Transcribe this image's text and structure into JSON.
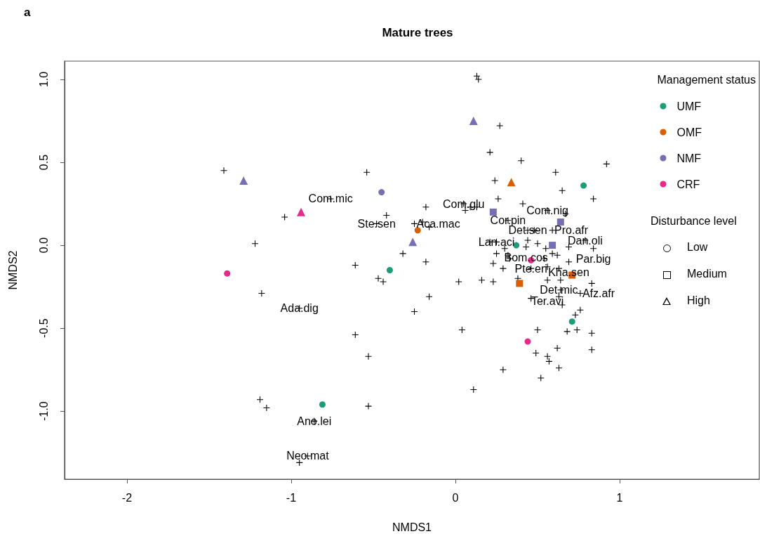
{
  "chart_data": {
    "type": "scatter",
    "title": "Mature trees",
    "xlabel": "NMDS1",
    "ylabel": "NMDS2",
    "legend_title": "Management status",
    "legend": "top right",
    "grid": false,
    "xlim": [
      -2.38,
      1.85
    ],
    "ylim": [
      -1.41,
      1.11
    ],
    "xticks": [
      -2,
      -1,
      0,
      1
    ],
    "yticks": [
      {
        "value": -1,
        "label": "-1.0"
      },
      {
        "value": -0.5,
        "label": "-0.5"
      },
      {
        "value": 0,
        "label": "0.0"
      },
      {
        "value": 0.5,
        "label": "0.5"
      },
      {
        "value": 1,
        "label": "1.0"
      }
    ],
    "series": [
      {
        "marker": "cross",
        "color": "#000000",
        "x": [
          -1.41,
          -1.04,
          -1.22,
          -1.18,
          -0.95,
          -1.19,
          -1.15,
          -0.86,
          -0.9,
          -0.95,
          -0.76,
          0.13,
          0.14,
          0.27,
          0.21,
          -0.54,
          0.24,
          0.26,
          -0.18,
          0.05,
          0.06,
          0.09,
          0.13,
          -0.42,
          -0.48,
          -0.25,
          -0.2,
          -0.16,
          0.32,
          0.21,
          -0.32,
          -0.18,
          -0.61,
          0.25,
          0.32,
          0.33,
          0.23,
          0.29,
          -0.47,
          -0.44,
          0.02,
          0.16,
          0.23,
          -0.16,
          -0.25,
          -0.61,
          0.04,
          -0.53,
          0.29,
          0.11,
          -0.53,
          0.4,
          0.92,
          0.61,
          0.65,
          0.84,
          0.41,
          0.56,
          0.67,
          0.44,
          0.48,
          0.59,
          0.25,
          0.44,
          0.5,
          0.79,
          0.69,
          0.84,
          0.3,
          0.43,
          0.55,
          0.59,
          0.62,
          0.54,
          0.69,
          0.46,
          0.56,
          0.63,
          0.38,
          0.56,
          0.64,
          0.83,
          0.64,
          0.63,
          0.76,
          0.46,
          0.65,
          0.76,
          0.73,
          0.5,
          0.68,
          0.74,
          0.83,
          0.83,
          0.62,
          0.49,
          0.56,
          0.57,
          0.63,
          0.52
        ],
        "values": [
          0.45,
          0.17,
          0.01,
          -0.29,
          -0.38,
          -0.93,
          -0.98,
          -1.06,
          -1.27,
          -1.31,
          0.28,
          1.02,
          1.0,
          0.72,
          0.56,
          0.44,
          0.39,
          0.28,
          0.23,
          0.25,
          0.21,
          0.23,
          0.23,
          0.18,
          0.13,
          0.13,
          0.14,
          0.11,
          0.15,
          0.02,
          -0.05,
          -0.1,
          -0.12,
          -0.05,
          -0.06,
          -0.08,
          -0.11,
          -0.14,
          -0.2,
          -0.22,
          -0.22,
          -0.21,
          -0.22,
          -0.31,
          -0.4,
          -0.54,
          -0.51,
          -0.67,
          -0.75,
          -0.87,
          -0.97,
          0.51,
          0.49,
          0.44,
          0.33,
          0.28,
          0.25,
          0.21,
          0.19,
          0.09,
          0.09,
          0.09,
          0.02,
          0.03,
          0.01,
          0.03,
          -0.01,
          -0.02,
          -0.02,
          -0.01,
          -0.02,
          -0.05,
          -0.06,
          -0.08,
          -0.1,
          -0.14,
          -0.13,
          -0.14,
          -0.2,
          -0.21,
          -0.21,
          -0.23,
          -0.27,
          -0.31,
          -0.29,
          -0.32,
          -0.36,
          -0.39,
          -0.42,
          -0.51,
          -0.52,
          -0.51,
          -0.53,
          -0.63,
          -0.62,
          -0.65,
          -0.67,
          -0.7,
          -0.74,
          -0.8
        ]
      },
      {
        "name": "UMF",
        "marker": "circle",
        "color": "#1b9e77",
        "x": [
          0.78,
          -0.4,
          0.71,
          -0.81,
          0.37
        ],
        "values": [
          0.36,
          -0.15,
          -0.46,
          -0.96,
          0.0
        ]
      },
      {
        "name": "OMF",
        "marker": "circle",
        "color": "#d95f02",
        "x": [
          -0.23
        ],
        "values": [
          0.09
        ]
      },
      {
        "marker": "square",
        "color": "#d95f02",
        "x": [
          0.39,
          0.71
        ],
        "values": [
          -0.23,
          -0.18
        ]
      },
      {
        "marker": "triangle",
        "color": "#d95f02",
        "x": [
          0.34
        ],
        "values": [
          0.38
        ]
      },
      {
        "name": "NMF",
        "marker": "circle",
        "color": "#7570b3",
        "x": [
          -0.45
        ],
        "values": [
          0.32
        ]
      },
      {
        "marker": "square",
        "color": "#7570b3",
        "x": [
          0.23,
          0.64,
          0.59
        ],
        "values": [
          0.2,
          0.14,
          0.0
        ]
      },
      {
        "marker": "triangle",
        "color": "#7570b3",
        "x": [
          -1.29,
          0.11,
          -0.26
        ],
        "values": [
          0.39,
          0.75,
          0.02
        ]
      },
      {
        "name": "CRF",
        "marker": "circle",
        "color": "#e7298a",
        "x": [
          -1.39,
          0.46,
          0.44
        ],
        "values": [
          -0.17,
          -0.09,
          -0.58
        ]
      },
      {
        "marker": "triangle",
        "color": "#e7298a",
        "x": [
          -0.94
        ],
        "values": [
          0.2
        ]
      }
    ],
    "annotations": [
      "a",
      "Disturbance level",
      "Low",
      "Medium",
      "High",
      {
        "text": "Com.mic",
        "x": -0.76,
        "y": 0.28
      },
      {
        "text": "Com.glu",
        "x": 0.05,
        "y": 0.25
      },
      {
        "text": "Ste.sen",
        "x": -0.48,
        "y": 0.13
      },
      {
        "text": "Aca.mac",
        "x": -0.25,
        "y": 0.13
      },
      {
        "text": "Cor.pin",
        "x": 0.32,
        "y": 0.15
      },
      {
        "text": "Com.nig",
        "x": 0.56,
        "y": 0.21
      },
      {
        "text": "Det.sen",
        "x": 0.44,
        "y": 0.09
      },
      {
        "text": "Pro.afr",
        "x": 0.59,
        "y": 0.09
      },
      {
        "text": "Lan.aci",
        "x": 0.25,
        "y": 0.02
      },
      {
        "text": "Dan.oli",
        "x": 0.79,
        "y": 0.03
      },
      {
        "text": "Bom.cos",
        "x": 0.43,
        "y": -0.01
      },
      {
        "text": "Par.big",
        "x": 0.84,
        "y": -0.02
      },
      {
        "text": "Kha.sen",
        "x": 0.69,
        "y": -0.1
      },
      {
        "text": "Pte.eri",
        "x": 0.46,
        "y": -0.14
      },
      {
        "text": "Det.mic",
        "x": 0.63,
        "y": -0.14
      },
      {
        "text": "Ter.avi",
        "x": 0.56,
        "y": -0.21
      },
      {
        "text": "Afz.afr",
        "x": 0.76,
        "y": -0.29
      },
      {
        "text": "Ada.dig",
        "x": -0.95,
        "y": -0.38
      },
      {
        "text": "Ano.lei",
        "x": -0.86,
        "y": -1.06
      },
      {
        "text": "Neo.mat",
        "x": -0.9,
        "y": -1.27
      }
    ]
  }
}
